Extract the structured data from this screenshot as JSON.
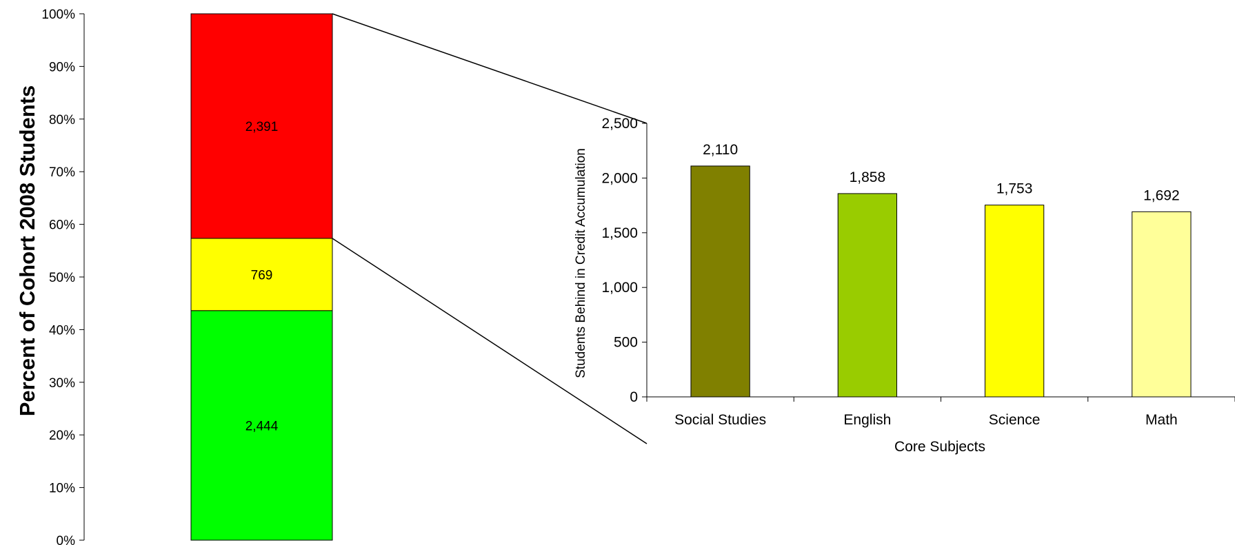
{
  "chart_data": [
    {
      "type": "bar",
      "stacked": true,
      "ylabel": "Percent of Cohort 2008 Students",
      "ylim": [
        0,
        100
      ],
      "y_ticks": [
        "0%",
        "10%",
        "20%",
        "30%",
        "40%",
        "50%",
        "60%",
        "70%",
        "80%",
        "90%",
        "100%"
      ],
      "segments": [
        {
          "value": 2444,
          "label": "2,444",
          "color": "#00ff00"
        },
        {
          "value": 769,
          "label": "769",
          "color": "#ffff00"
        },
        {
          "value": 2391,
          "label": "2,391",
          "color": "#ff0000"
        }
      ]
    },
    {
      "type": "bar",
      "categories": [
        "Social Studies",
        "English",
        "Science",
        "Math"
      ],
      "values": [
        2110,
        1858,
        1753,
        1692
      ],
      "value_labels": [
        "2,110",
        "1,858",
        "1,753",
        "1,692"
      ],
      "colors": [
        "#808000",
        "#99cc00",
        "#ffff00",
        "#ffff99"
      ],
      "xlabel": "Core Subjects",
      "ylabel": "Students Behind in Credit Accumulation",
      "ylim": [
        0,
        2500
      ],
      "y_ticks": [
        "0",
        "500",
        "1,000",
        "1,500",
        "2,000",
        "2,500"
      ]
    }
  ]
}
